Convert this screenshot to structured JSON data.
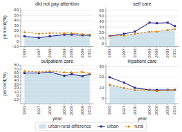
{
  "chart_data": [
    {
      "type": "line",
      "title": "did not pay attention",
      "y_label": "percent(%)",
      "x": [
        1993,
        1997,
        2000,
        2004,
        2006,
        2009,
        2011
      ],
      "xlim": [
        1992,
        2012
      ],
      "xticks": [
        1993,
        1997,
        2000,
        2004,
        2006,
        2009,
        2011
      ],
      "ylim": [
        -10,
        65
      ],
      "yticks": [
        -10,
        0,
        10,
        20,
        30,
        40,
        50,
        60
      ],
      "grid": true,
      "legend": "bottom",
      "series": [
        {
          "name": "urban-rural difference",
          "type": "area",
          "color": "#b0cfe0",
          "values": [
            10,
            7,
            10,
            13,
            13,
            12,
            12
          ]
        },
        {
          "name": "urban",
          "type": "line",
          "color": "#2c2c8c",
          "marker": "square",
          "line_style": "solid",
          "values": [
            10,
            7,
            10,
            13,
            13,
            12,
            12
          ]
        },
        {
          "name": "rural",
          "type": "line",
          "color": "#d4820a",
          "marker": "triangle",
          "line_style": "dashed",
          "values": [
            18,
            15,
            16,
            16,
            16,
            14,
            13
          ]
        }
      ]
    },
    {
      "type": "line",
      "title": "self care",
      "x": [
        1993,
        1997,
        2000,
        2004,
        2006,
        2009,
        2011
      ],
      "xlim": [
        1992,
        2012
      ],
      "xticks": [
        1993,
        1997,
        2000,
        2004,
        2006,
        2009,
        2011
      ],
      "ylim": [
        -5,
        65
      ],
      "yticks": [
        0,
        10,
        20,
        30,
        40,
        50,
        60
      ],
      "grid": true,
      "series": [
        {
          "name": "urban-rural difference",
          "type": "area",
          "color": "#b0cfe0",
          "values": [
            14,
            15,
            18,
            22,
            22,
            25,
            27
          ]
        },
        {
          "name": "urban",
          "type": "line",
          "color": "#2c2c8c",
          "marker": "square",
          "line_style": "solid",
          "values": [
            14,
            18,
            22,
            38,
            37,
            38,
            32
          ]
        },
        {
          "name": "rural",
          "type": "line",
          "color": "#d4820a",
          "marker": "triangle",
          "line_style": "dashed",
          "values": [
            14,
            15,
            18,
            22,
            22,
            25,
            27
          ]
        }
      ]
    },
    {
      "type": "line",
      "title": "outpatient care",
      "x_label": "year",
      "y_label": "percent(%)",
      "x": [
        1993,
        1997,
        2000,
        2004,
        2006,
        2009,
        2011
      ],
      "xlim": [
        1992,
        2012
      ],
      "xticks": [
        1993,
        1997,
        2000,
        2004,
        2006,
        2009,
        2011
      ],
      "ylim": [
        -20,
        82
      ],
      "yticks": [
        -10,
        0,
        10,
        20,
        30,
        40,
        50,
        60,
        70,
        80
      ],
      "grid": true,
      "series": [
        {
          "name": "urban-rural difference",
          "type": "area",
          "color": "#b0cfe0",
          "values": [
            60,
            60,
            63,
            53,
            57,
            52,
            57
          ]
        },
        {
          "name": "urban",
          "type": "line",
          "color": "#2c2c8c",
          "marker": "square",
          "line_style": "solid",
          "values": [
            60,
            60,
            63,
            53,
            57,
            52,
            57
          ]
        },
        {
          "name": "rural",
          "type": "line",
          "color": "#d4820a",
          "marker": "triangle",
          "line_style": "dashed",
          "values": [
            65,
            63,
            65,
            62,
            62,
            63,
            59
          ]
        }
      ]
    },
    {
      "type": "line",
      "title": "inpatient care",
      "x_label": "year",
      "x": [
        1993,
        1997,
        2000,
        2004,
        2006,
        2009,
        2011
      ],
      "xlim": [
        1992,
        2012
      ],
      "xticks": [
        1993,
        1997,
        2000,
        2004,
        2006,
        2009,
        2011
      ],
      "ylim": [
        -5,
        32
      ],
      "yticks": [
        0,
        10,
        20,
        30
      ],
      "grid": true,
      "series": [
        {
          "name": "urban-rural difference",
          "type": "area",
          "color": "#b0cfe0",
          "values": [
            13,
            10,
            8,
            8,
            7,
            8,
            8
          ]
        },
        {
          "name": "urban",
          "type": "line",
          "color": "#2c2c8c",
          "marker": "square",
          "line_style": "solid",
          "values": [
            20,
            15,
            10,
            8,
            8,
            8,
            8
          ]
        },
        {
          "name": "rural",
          "type": "line",
          "color": "#d4820a",
          "marker": "triangle",
          "line_style": "dashed",
          "values": [
            13,
            10,
            8,
            8,
            7,
            8,
            8
          ]
        }
      ]
    }
  ]
}
